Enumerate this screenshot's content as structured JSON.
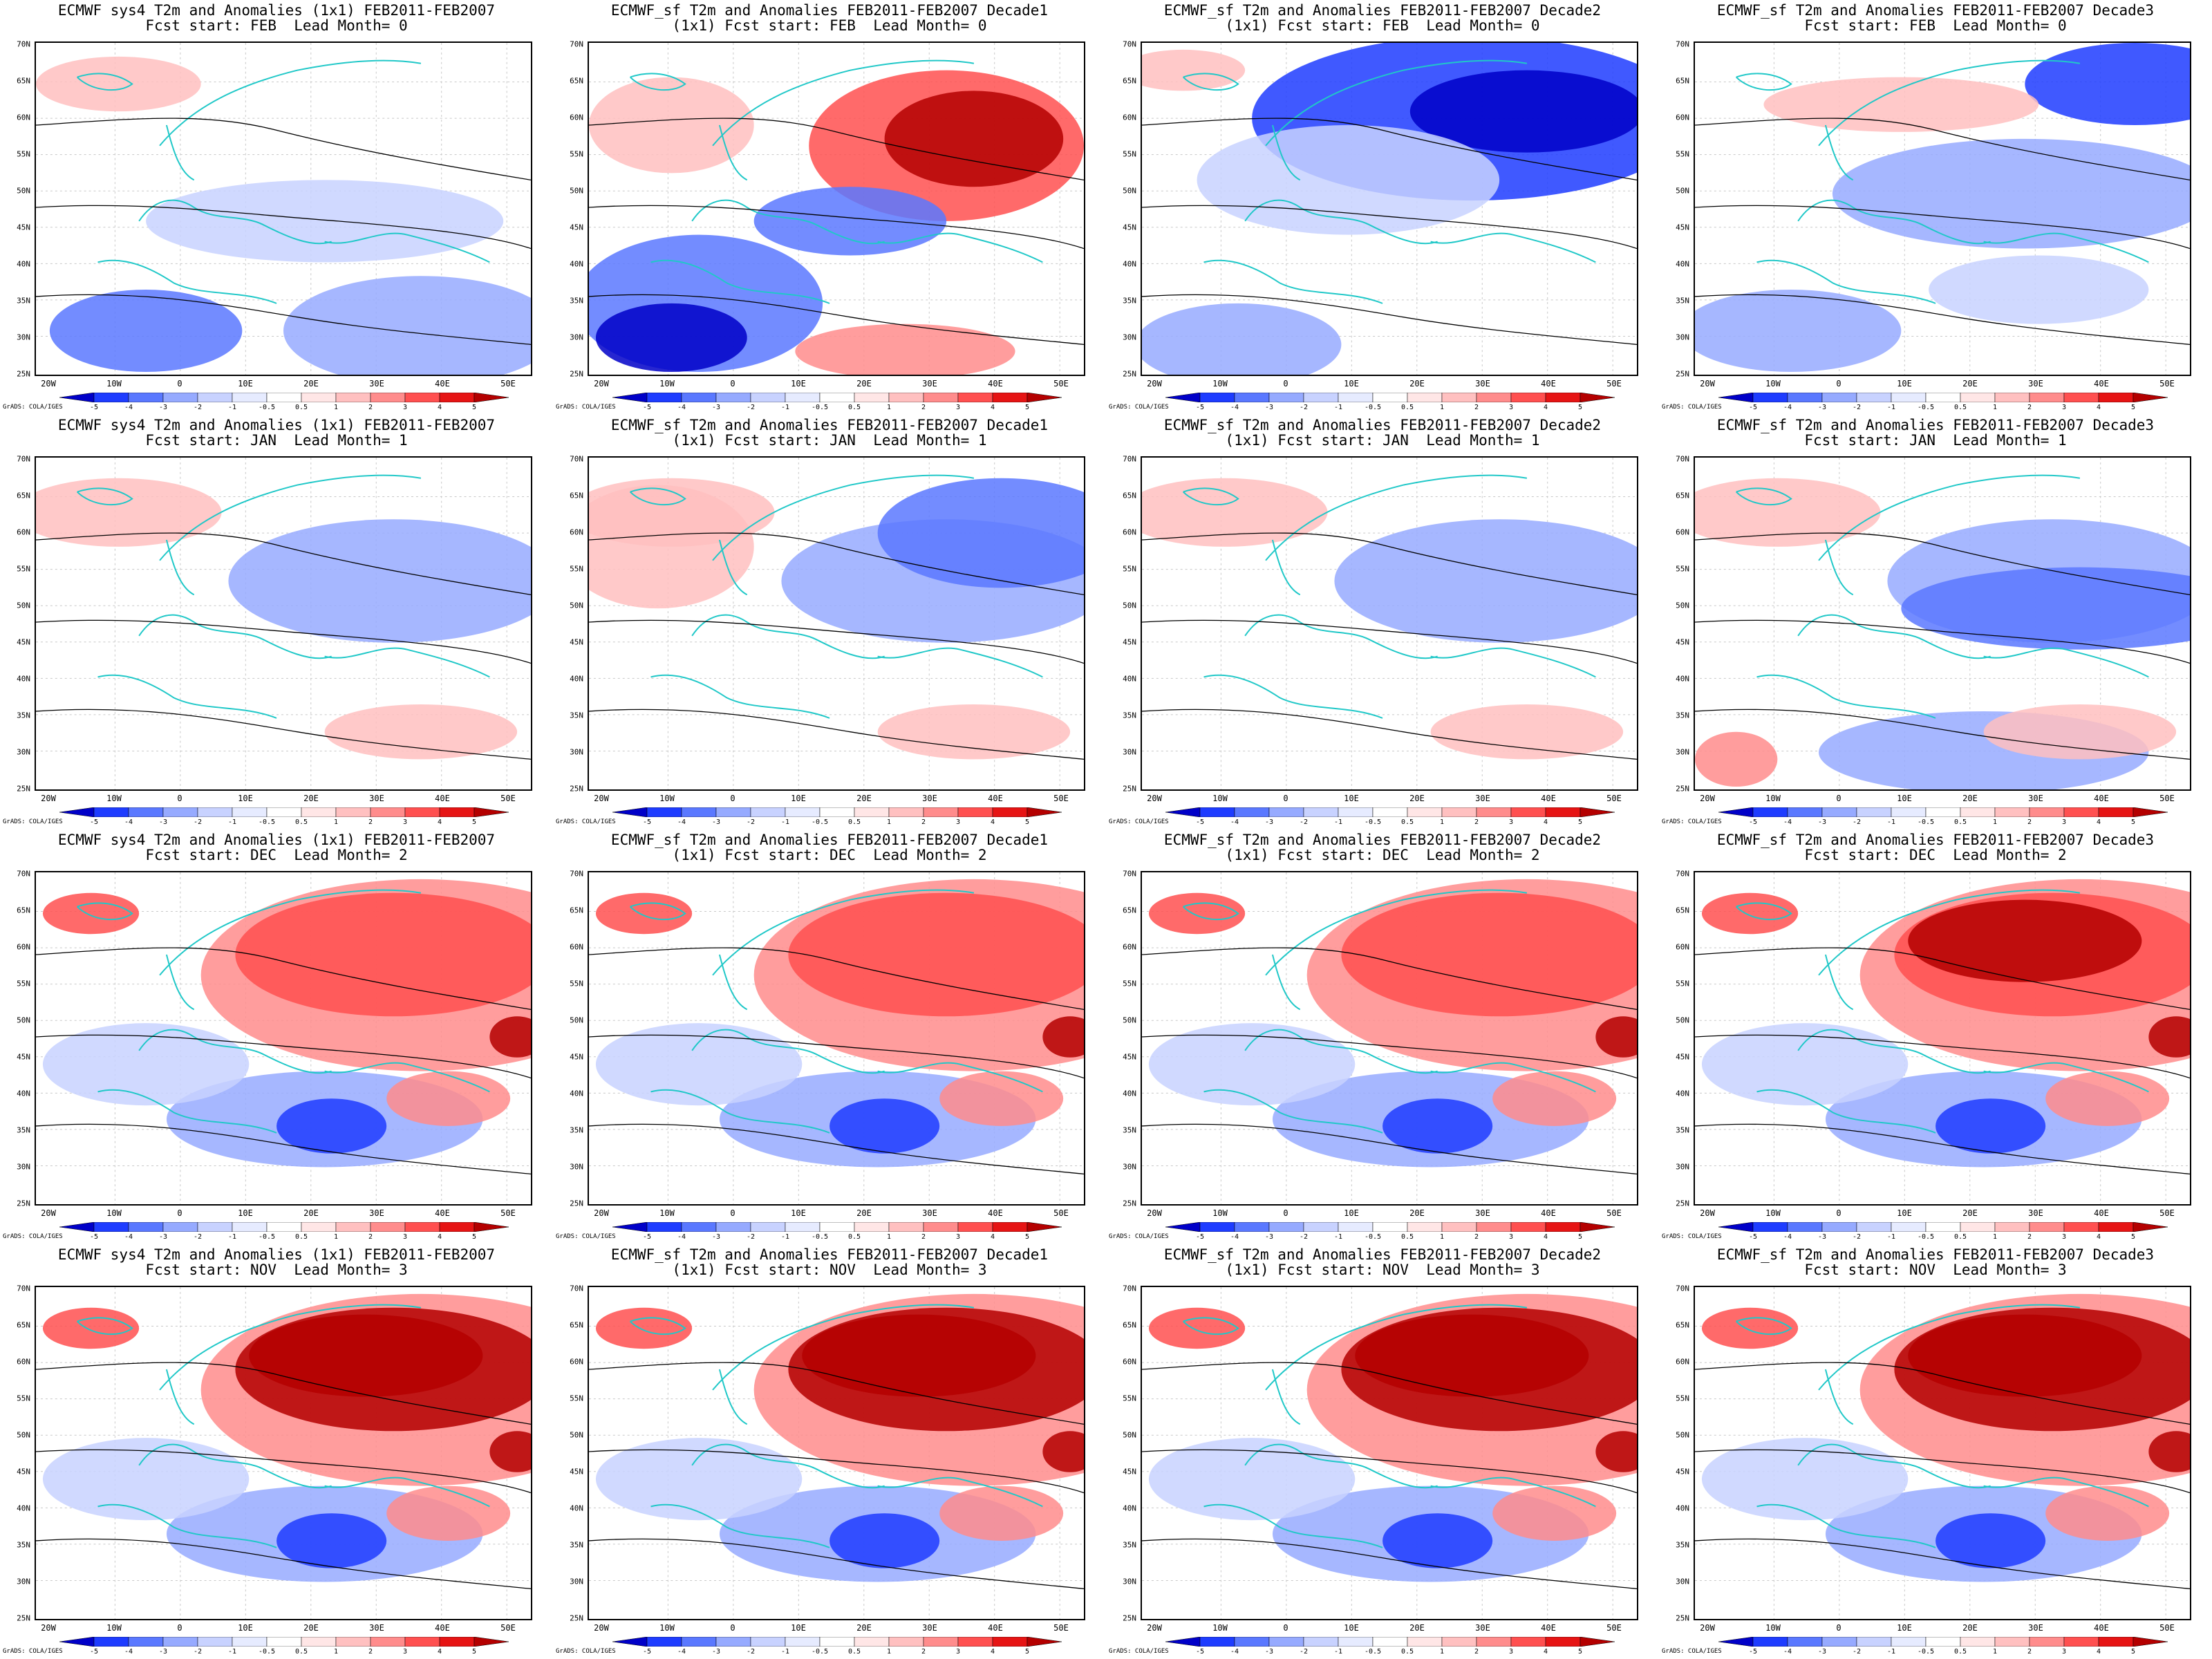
{
  "row_titles": [
    "Fcst start: FEB  Lead Month= 0",
    "Fcst start: JAN  Lead Month= 1",
    "Fcst start: DEC  Lead Month= 2",
    "Fcst start: NOV  Lead Month= 3"
  ],
  "panels": [
    {
      "t1": "ECMWF sys4 T2m and Anomalies (1x1) FEB2011-FEB2007",
      "t2": "Fcst start: FEB  Lead Month= 0"
    },
    {
      "t1": "ECMWF_sf T2m and Anomalies FEB2011-FEB2007 Decade1",
      "t2": "(1x1) Fcst start: FEB  Lead Month= 0"
    },
    {
      "t1": "ECMWF_sf T2m and Anomalies FEB2011-FEB2007 Decade2",
      "t2": "(1x1) Fcst start: FEB  Lead Month= 0"
    },
    {
      "t1": "ECMWF_sf T2m and Anomalies FEB2011-FEB2007 Decade3",
      "t2": "Fcst start: FEB  Lead Month= 0"
    },
    {
      "t1": "ECMWF sys4 T2m and Anomalies (1x1) FEB2011-FEB2007",
      "t2": "Fcst start: JAN  Lead Month= 1"
    },
    {
      "t1": "ECMWF_sf T2m and Anomalies FEB2011-FEB2007 Decade1",
      "t2": "(1x1) Fcst start: JAN  Lead Month= 1"
    },
    {
      "t1": "ECMWF_sf T2m and Anomalies FEB2011-FEB2007 Decade2",
      "t2": "(1x1) Fcst start: JAN  Lead Month= 1"
    },
    {
      "t1": "ECMWF_sf T2m and Anomalies FEB2011-FEB2007 Decade3",
      "t2": "Fcst start: JAN  Lead Month= 1"
    },
    {
      "t1": "ECMWF sys4 T2m and Anomalies (1x1) FEB2011-FEB2007",
      "t2": "Fcst start: DEC  Lead Month= 2"
    },
    {
      "t1": "ECMWF_sf T2m and Anomalies FEB2011-FEB2007 Decade1",
      "t2": "(1x1) Fcst start: DEC  Lead Month= 2"
    },
    {
      "t1": "ECMWF_sf T2m and Anomalies FEB2011-FEB2007 Decade2",
      "t2": "(1x1) Fcst start: DEC  Lead Month= 2"
    },
    {
      "t1": "ECMWF_sf T2m and Anomalies FEB2011-FEB2007 Decade3",
      "t2": "Fcst start: DEC  Lead Month= 2"
    },
    {
      "t1": "ECMWF sys4 T2m and Anomalies (1x1) FEB2011-FEB2007",
      "t2": "Fcst start: NOV  Lead Month= 3"
    },
    {
      "t1": "ECMWF_sf T2m and Anomalies FEB2011-FEB2007 Decade1",
      "t2": "(1x1) Fcst start: NOV  Lead Month= 3"
    },
    {
      "t1": "ECMWF_sf T2m and Anomalies FEB2011-FEB2007 Decade2",
      "t2": "(1x1) Fcst start: NOV  Lead Month= 3"
    },
    {
      "t1": "ECMWF_sf T2m and Anomalies FEB2011-FEB2007 Decade3",
      "t2": "Fcst start: NOV  Lead Month= 3"
    }
  ],
  "x_ticks": [
    "20W",
    "10W",
    "0",
    "10E",
    "20E",
    "30E",
    "40E",
    "50E"
  ],
  "y_ticks": [
    "70N",
    "65N",
    "60N",
    "55N",
    "50N",
    "45N",
    "40N",
    "35N",
    "30N",
    "25N"
  ],
  "colorbar": {
    "labels": [
      "-5",
      "-4",
      "-3",
      "-2",
      "-1",
      "-0.5",
      "0.5",
      "1",
      "2",
      "3",
      "4",
      "5"
    ],
    "colors": [
      "#0000c8",
      "#1e3cff",
      "#5a78ff",
      "#96aaff",
      "#c8d2ff",
      "#e6ebff",
      "#ffffff",
      "#ffe6e6",
      "#ffc0c0",
      "#ff8c8c",
      "#ff5050",
      "#e61414",
      "#b40000"
    ]
  },
  "credit": "GrADS: COLA/IGES",
  "colors": {
    "coast": "#20c8c8",
    "contour": "#000000"
  }
}
